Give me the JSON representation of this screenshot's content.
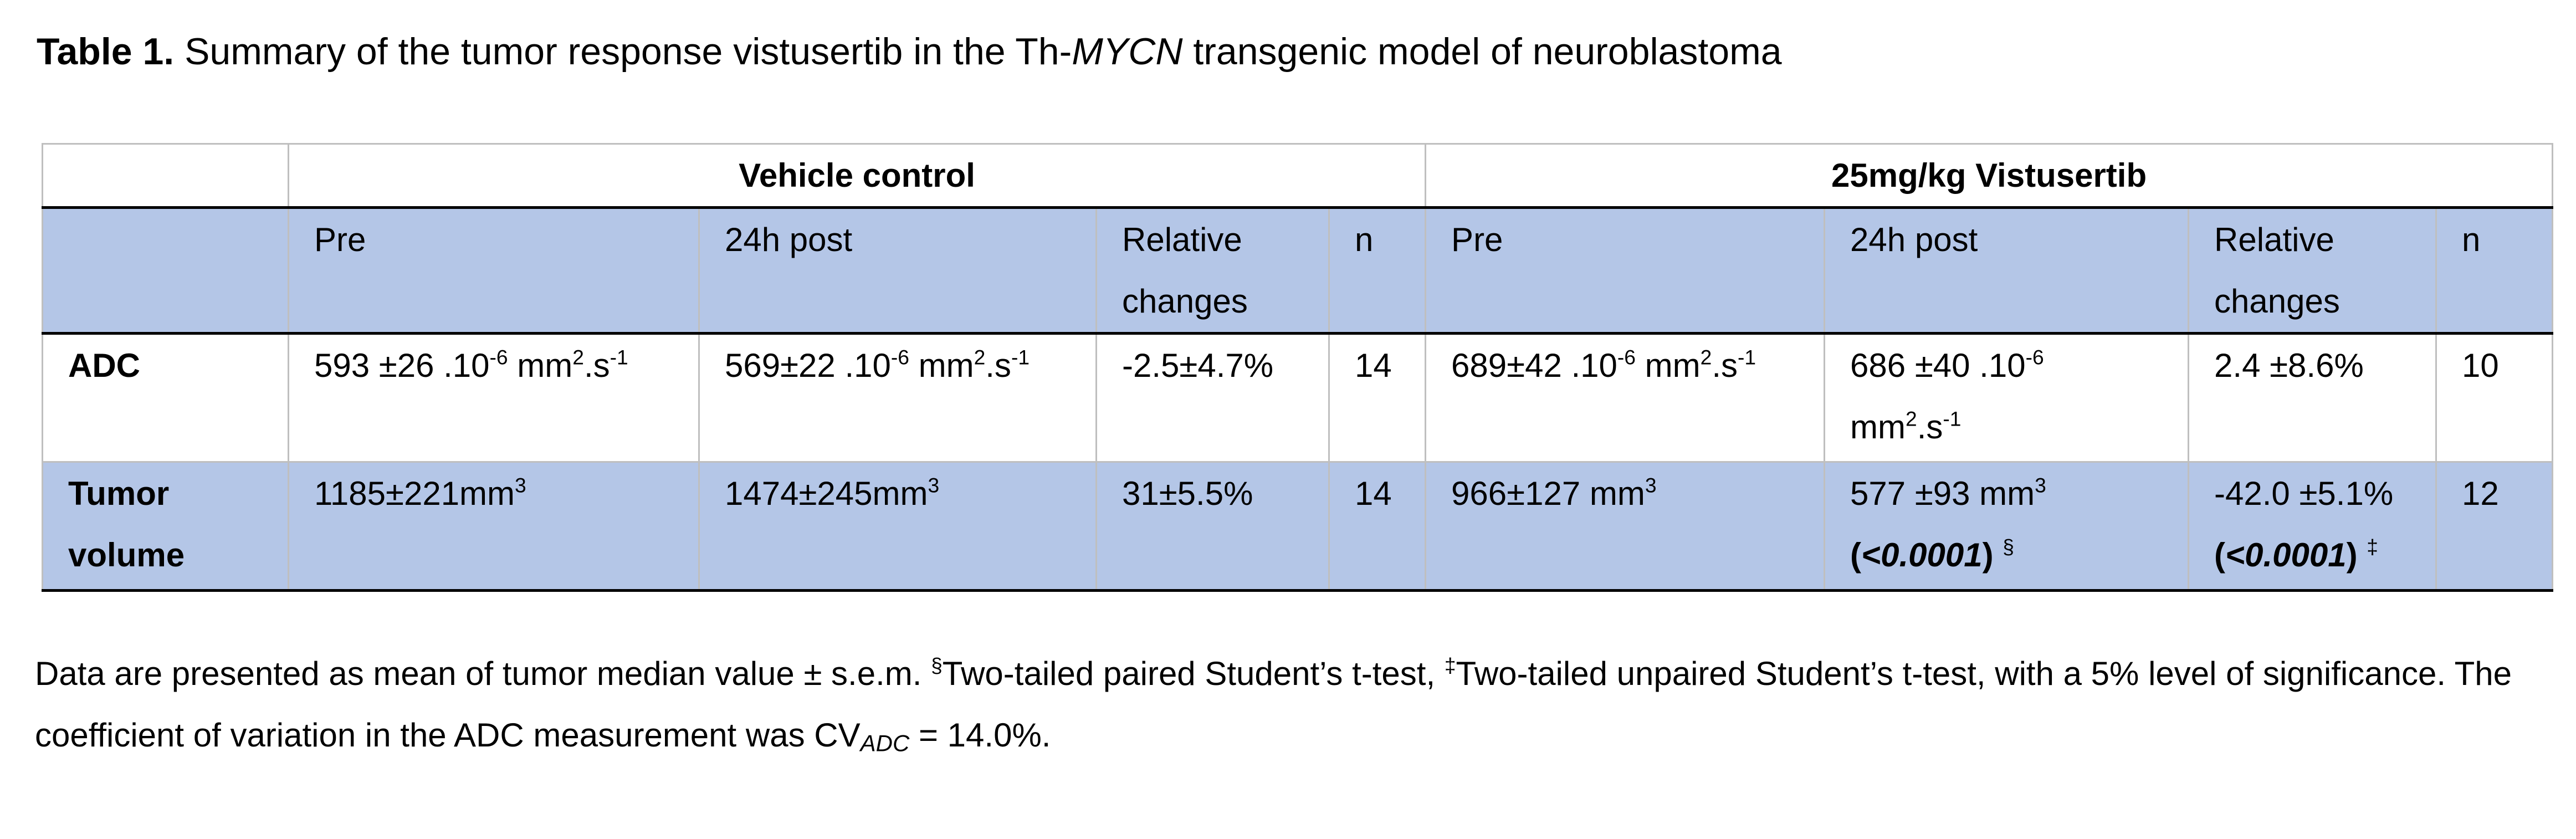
{
  "title": {
    "label": "Table 1.",
    "text_before": " Summary of the tumor response vistusertib in the Th-",
    "italic": "MYCN",
    "text_after": " transgenic model of neuroblastoma"
  },
  "table": {
    "groups": [
      "Vehicle control",
      "25mg/kg Vistusertib"
    ],
    "columns": [
      "Pre",
      "24h post",
      "Relative changes",
      "n",
      "Pre",
      "24h post",
      "Relative changes",
      "n"
    ],
    "rows": [
      [
        "ADC",
        [
          "593 ±26 .10",
          "-6",
          " mm",
          "2",
          ".s",
          "-1"
        ],
        [
          "569±22 .10",
          "-6",
          " mm",
          "2",
          ".s",
          "-1"
        ],
        "-2.5±4.7%",
        "14",
        [
          "689±42 .10",
          "-6",
          " mm",
          "2",
          ".s",
          "-1"
        ],
        [
          "686 ±40 .10",
          "-6",
          " mm",
          "2",
          ".s",
          "-1"
        ],
        "2.4 ±8.6%",
        "10"
      ],
      [
        "Tumor volume",
        [
          "1185±221mm",
          "3"
        ],
        [
          "1474±245mm",
          "3"
        ],
        "31±5.5%",
        "14",
        [
          "966±127 mm",
          "3"
        ],
        [
          "577 ±93 mm",
          "3",
          "(",
          "<0.0001",
          ")",
          "§"
        ],
        [
          "-42.0 ±5.1%",
          "(",
          "<0.0001",
          ")",
          "‡"
        ],
        "12"
      ]
    ]
  },
  "footnote": [
    "Data are presented as mean of tumor median value ± s.e.m. ",
    "§",
    "Two-tailed paired Student’s t-test, ",
    "‡",
    "Two-tailed unpaired Student’s t-test, with a 5% level of significance. The coefficient of variation in the ADC measurement was CV",
    "ADC",
    " = 14.0%."
  ]
}
